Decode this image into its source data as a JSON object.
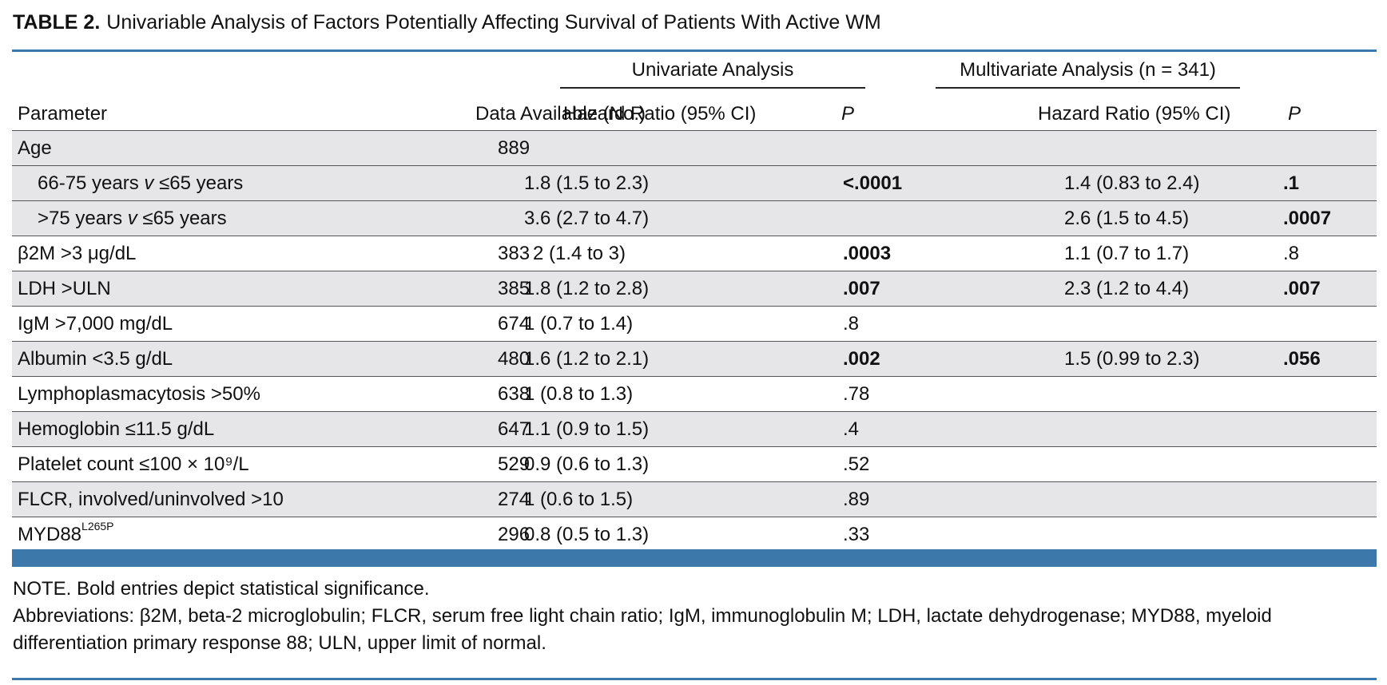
{
  "table": {
    "label": "TABLE 2.",
    "title": "Univariable Analysis of Factors Potentially Affecting Survival of Patients With Active WM",
    "group_headers": {
      "univariate": "Univariate Analysis",
      "multivariate": "Multivariate Analysis (n = 341)"
    },
    "columns": {
      "parameter": "Parameter",
      "data_available": "Data Available (No.)",
      "uni_hr": "Hazard Ratio (95% CI)",
      "uni_p": "P",
      "multi_hr": "Hazard Ratio (95% CI)",
      "multi_p": "P"
    },
    "rows": [
      {
        "parameter": "Age",
        "parameter_sup": "",
        "indent": false,
        "data_available": "889",
        "uni_hr": "",
        "uni_p": "",
        "uni_p_bold": false,
        "multi_hr": "",
        "multi_p": "",
        "multi_p_bold": false
      },
      {
        "parameter": "66-75 years v ≤65 years",
        "parameter_sup": "",
        "indent": true,
        "data_available": "",
        "uni_hr": "1.8 (1.5 to 2.3)",
        "uni_p": "<.0001",
        "uni_p_bold": true,
        "multi_hr": "1.4 (0.83 to 2.4)",
        "multi_p": ".1",
        "multi_p_bold": true
      },
      {
        "parameter": ">75 years v ≤65 years",
        "parameter_sup": "",
        "indent": true,
        "data_available": "",
        "uni_hr": "3.6 (2.7 to 4.7)",
        "uni_p": "",
        "uni_p_bold": false,
        "multi_hr": "2.6 (1.5 to 4.5)",
        "multi_p": ".0007",
        "multi_p_bold": true
      },
      {
        "parameter": "β2M >3 μg/dL",
        "parameter_sup": "",
        "indent": false,
        "data_available": "383",
        "uni_hr": "2 (1.4 to 3)",
        "uni_p": ".0003",
        "uni_p_bold": true,
        "multi_hr": "1.1 (0.7 to 1.7)",
        "multi_p": ".8",
        "multi_p_bold": false
      },
      {
        "parameter": "LDH >ULN",
        "parameter_sup": "",
        "indent": false,
        "data_available": "385",
        "uni_hr": "1.8 (1.2 to 2.8)",
        "uni_p": ".007",
        "uni_p_bold": true,
        "multi_hr": "2.3 (1.2 to 4.4)",
        "multi_p": ".007",
        "multi_p_bold": true
      },
      {
        "parameter": "IgM >7,000 mg/dL",
        "parameter_sup": "",
        "indent": false,
        "data_available": "674",
        "uni_hr": "1 (0.7 to 1.4)",
        "uni_p": ".8",
        "uni_p_bold": false,
        "multi_hr": "",
        "multi_p": "",
        "multi_p_bold": false
      },
      {
        "parameter": "Albumin <3.5 g/dL",
        "parameter_sup": "",
        "indent": false,
        "data_available": "480",
        "uni_hr": "1.6 (1.2 to 2.1)",
        "uni_p": ".002",
        "uni_p_bold": true,
        "multi_hr": "1.5 (0.99 to 2.3)",
        "multi_p": ".056",
        "multi_p_bold": true
      },
      {
        "parameter": "Lymphoplasmacytosis >50%",
        "parameter_sup": "",
        "indent": false,
        "data_available": "638",
        "uni_hr": "1 (0.8 to 1.3)",
        "uni_p": ".78",
        "uni_p_bold": false,
        "multi_hr": "",
        "multi_p": "",
        "multi_p_bold": false
      },
      {
        "parameter": "Hemoglobin ≤11.5 g/dL",
        "parameter_sup": "",
        "indent": false,
        "data_available": "647",
        "uni_hr": "1.1 (0.9 to 1.5)",
        "uni_p": ".4",
        "uni_p_bold": false,
        "multi_hr": "",
        "multi_p": "",
        "multi_p_bold": false
      },
      {
        "parameter": "Platelet count ≤100 × 10⁹/L",
        "parameter_sup": "",
        "indent": false,
        "data_available": "529",
        "uni_hr": "0.9 (0.6 to 1.3)",
        "uni_p": ".52",
        "uni_p_bold": false,
        "multi_hr": "",
        "multi_p": "",
        "multi_p_bold": false
      },
      {
        "parameter": "FLCR, involved/uninvolved >10",
        "parameter_sup": "",
        "indent": false,
        "data_available": "274",
        "uni_hr": "1 (0.6 to 1.5)",
        "uni_p": ".89",
        "uni_p_bold": false,
        "multi_hr": "",
        "multi_p": "",
        "multi_p_bold": false
      },
      {
        "parameter": "MYD88",
        "parameter_sup": "L265P",
        "indent": false,
        "data_available": "296",
        "uni_hr": "0.8 (0.5 to 1.3)",
        "uni_p": ".33",
        "uni_p_bold": false,
        "multi_hr": "",
        "multi_p": "",
        "multi_p_bold": false
      }
    ],
    "note": "NOTE. Bold entries depict statistical significance.",
    "abbreviations": "Abbreviations: β2M, beta-2 microglobulin; FLCR, serum free light chain ratio; IgM, immunoglobulin M; LDH, lactate dehydrogenase; MYD88, myeloid differentiation primary response 88; ULN, upper limit of normal."
  },
  "colors": {
    "accent_rule": "#3d78aa",
    "row_shade": "#e6e6e9"
  }
}
